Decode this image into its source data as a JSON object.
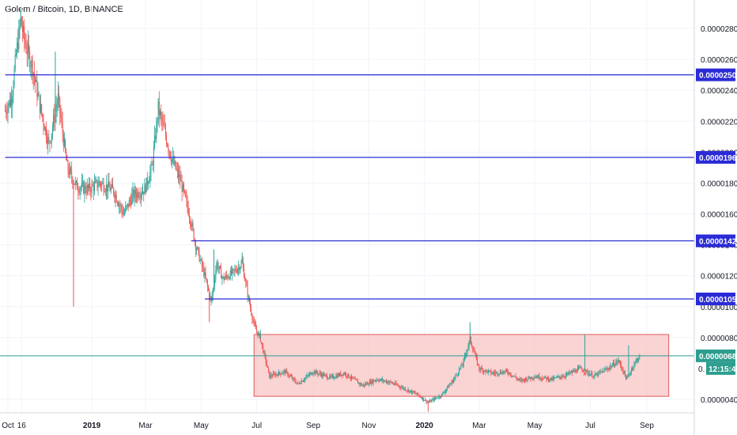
{
  "chart_data": {
    "type": "candlestick",
    "title": "Golem / Bitcoin, 1D, BINANCE",
    "symbol": "Golem / Bitcoin",
    "interval": "1D",
    "exchange": "BINANCE",
    "ylim": [
      3.1e-06,
      2.9e-06
    ],
    "y_range": [
      2.85e-06,
      3.15e-06
    ],
    "y_ticks": [
      "0.00000400",
      "0.00000800",
      "0.00001000",
      "0.00001200",
      "0.00001400",
      "0.00001600",
      "0.00001800",
      "0.00002000",
      "0.00002200",
      "0.00002400",
      "0.00002600",
      "0.00002800"
    ],
    "y_tick_values": [
      4e-06,
      8e-06,
      1e-05,
      1.2e-05,
      1.4e-05,
      1.6e-05,
      1.8e-05,
      2e-05,
      2.2e-05,
      2.4e-05,
      2.6e-05,
      2.8e-05
    ],
    "x_ticks": [
      "Oct",
      "16",
      "2019",
      "Mar",
      "May",
      "Jul",
      "Sep",
      "Nov",
      "2020",
      "Mar",
      "May",
      "Jul",
      "Sep"
    ],
    "x_tick_dates": [
      "2018-10-01",
      "2018-10-16",
      "2019-01-01",
      "2019-03-01",
      "2019-05-01",
      "2019-07-01",
      "2019-09-01",
      "2019-11-01",
      "2020-01-01",
      "2020-03-01",
      "2020-05-01",
      "2020-07-01",
      "2020-09-01"
    ],
    "x_range": [
      "2018-09-28",
      "2020-10-10"
    ],
    "horizontal_levels": [
      {
        "label": "0.00002500",
        "value": 2.5e-05,
        "start": "2018-09-28"
      },
      {
        "label": "0.00001966",
        "value": 1.966e-05,
        "start": "2018-09-28"
      },
      {
        "label": "0.00001426",
        "value": 1.426e-05,
        "start": "2019-04-20"
      },
      {
        "label": "0.00001050",
        "value": 1.05e-05,
        "start": "2019-05-05"
      }
    ],
    "level_color": "#2b2bd6",
    "last_price": {
      "label": "0.00000682",
      "value": 6.82e-06,
      "color": "#2e9e8f"
    },
    "countdown": {
      "prefix": "0.",
      "label": "12:15:43"
    },
    "range_box": {
      "x_start": "2019-06-28",
      "x_end": "2020-09-25",
      "y_top": 8.2e-06,
      "y_bottom": 4.2e-06,
      "fill": "#f8c4c4",
      "stroke": "#e05a5a"
    },
    "up_color": "#26a69a",
    "down_color": "#ef5350",
    "price_path": [
      [
        "2018-09-28",
        2.27e-05
      ],
      [
        "2018-10-05",
        2.35e-05
      ],
      [
        "2018-10-10",
        2.63e-05
      ],
      [
        "2018-10-15",
        2.85e-05
      ],
      [
        "2018-10-20",
        2.7e-05
      ],
      [
        "2018-10-28",
        2.55e-05
      ],
      [
        "2018-11-05",
        2.3e-05
      ],
      [
        "2018-11-15",
        2.05e-05
      ],
      [
        "2018-11-25",
        2.35e-05
      ],
      [
        "2018-12-05",
        1.9e-05
      ],
      [
        "2018-12-15",
        1.78e-05
      ],
      [
        "2018-12-28",
        1.76e-05
      ],
      [
        "2019-01-10",
        1.8e-05
      ],
      [
        "2019-01-25",
        1.75e-05
      ],
      [
        "2019-02-05",
        1.6e-05
      ],
      [
        "2019-02-15",
        1.72e-05
      ],
      [
        "2019-02-28",
        1.76e-05
      ],
      [
        "2019-03-08",
        1.9e-05
      ],
      [
        "2019-03-15",
        2.28e-05
      ],
      [
        "2019-03-22",
        2.13e-05
      ],
      [
        "2019-03-30",
        1.95e-05
      ],
      [
        "2019-04-08",
        1.82e-05
      ],
      [
        "2019-04-18",
        1.6e-05
      ],
      [
        "2019-04-25",
        1.4e-05
      ],
      [
        "2019-05-05",
        1.2e-05
      ],
      [
        "2019-05-12",
        1.03e-05
      ],
      [
        "2019-05-18",
        1.28e-05
      ],
      [
        "2019-05-25",
        1.18e-05
      ],
      [
        "2019-06-05",
        1.22e-05
      ],
      [
        "2019-06-15",
        1.28e-05
      ],
      [
        "2019-06-22",
        1.05e-05
      ],
      [
        "2019-06-28",
        8.8e-06
      ],
      [
        "2019-07-05",
        7.9e-06
      ],
      [
        "2019-07-15",
        5.5e-06
      ],
      [
        "2019-08-01",
        5.8e-06
      ],
      [
        "2019-08-15",
        5e-06
      ],
      [
        "2019-09-01",
        5.8e-06
      ],
      [
        "2019-09-20",
        5.4e-06
      ],
      [
        "2019-10-05",
        5.7e-06
      ],
      [
        "2019-10-25",
        4.9e-06
      ],
      [
        "2019-11-10",
        5.3e-06
      ],
      [
        "2019-11-25",
        5.1e-06
      ],
      [
        "2019-12-10",
        4.7e-06
      ],
      [
        "2019-12-25",
        4.3e-06
      ],
      [
        "2020-01-05",
        3.8e-06
      ],
      [
        "2020-01-20",
        4.3e-06
      ],
      [
        "2020-02-01",
        5.2e-06
      ],
      [
        "2020-02-12",
        6.3e-06
      ],
      [
        "2020-02-20",
        7.9e-06
      ],
      [
        "2020-03-01",
        6e-06
      ],
      [
        "2020-03-15",
        5.7e-06
      ],
      [
        "2020-04-01",
        5.8e-06
      ],
      [
        "2020-04-15",
        5.2e-06
      ],
      [
        "2020-05-01",
        5.5e-06
      ],
      [
        "2020-05-20",
        5.3e-06
      ],
      [
        "2020-06-05",
        5.6e-06
      ],
      [
        "2020-06-20",
        6e-06
      ],
      [
        "2020-07-05",
        5.5e-06
      ],
      [
        "2020-07-20",
        6e-06
      ],
      [
        "2020-08-01",
        6.5e-06
      ],
      [
        "2020-08-10",
        5.3e-06
      ],
      [
        "2020-08-18",
        6.3e-06
      ],
      [
        "2020-08-24",
        6.8e-06
      ]
    ],
    "spike_highs": [
      [
        "2018-10-15",
        2.92e-05
      ],
      [
        "2018-11-22",
        2.65e-05
      ],
      [
        "2019-03-15",
        2.35e-05
      ],
      [
        "2019-05-15",
        1.37e-05
      ],
      [
        "2019-06-15",
        1.35e-05
      ],
      [
        "2019-07-05",
        8.5e-06
      ],
      [
        "2020-02-20",
        9e-06
      ],
      [
        "2020-06-25",
        8.2e-06
      ],
      [
        "2020-08-12",
        7.5e-06
      ]
    ],
    "spike_lows": [
      [
        "2018-12-12",
        1e-05
      ],
      [
        "2019-05-10",
        9e-06
      ],
      [
        "2020-01-05",
        3.2e-06
      ]
    ]
  }
}
